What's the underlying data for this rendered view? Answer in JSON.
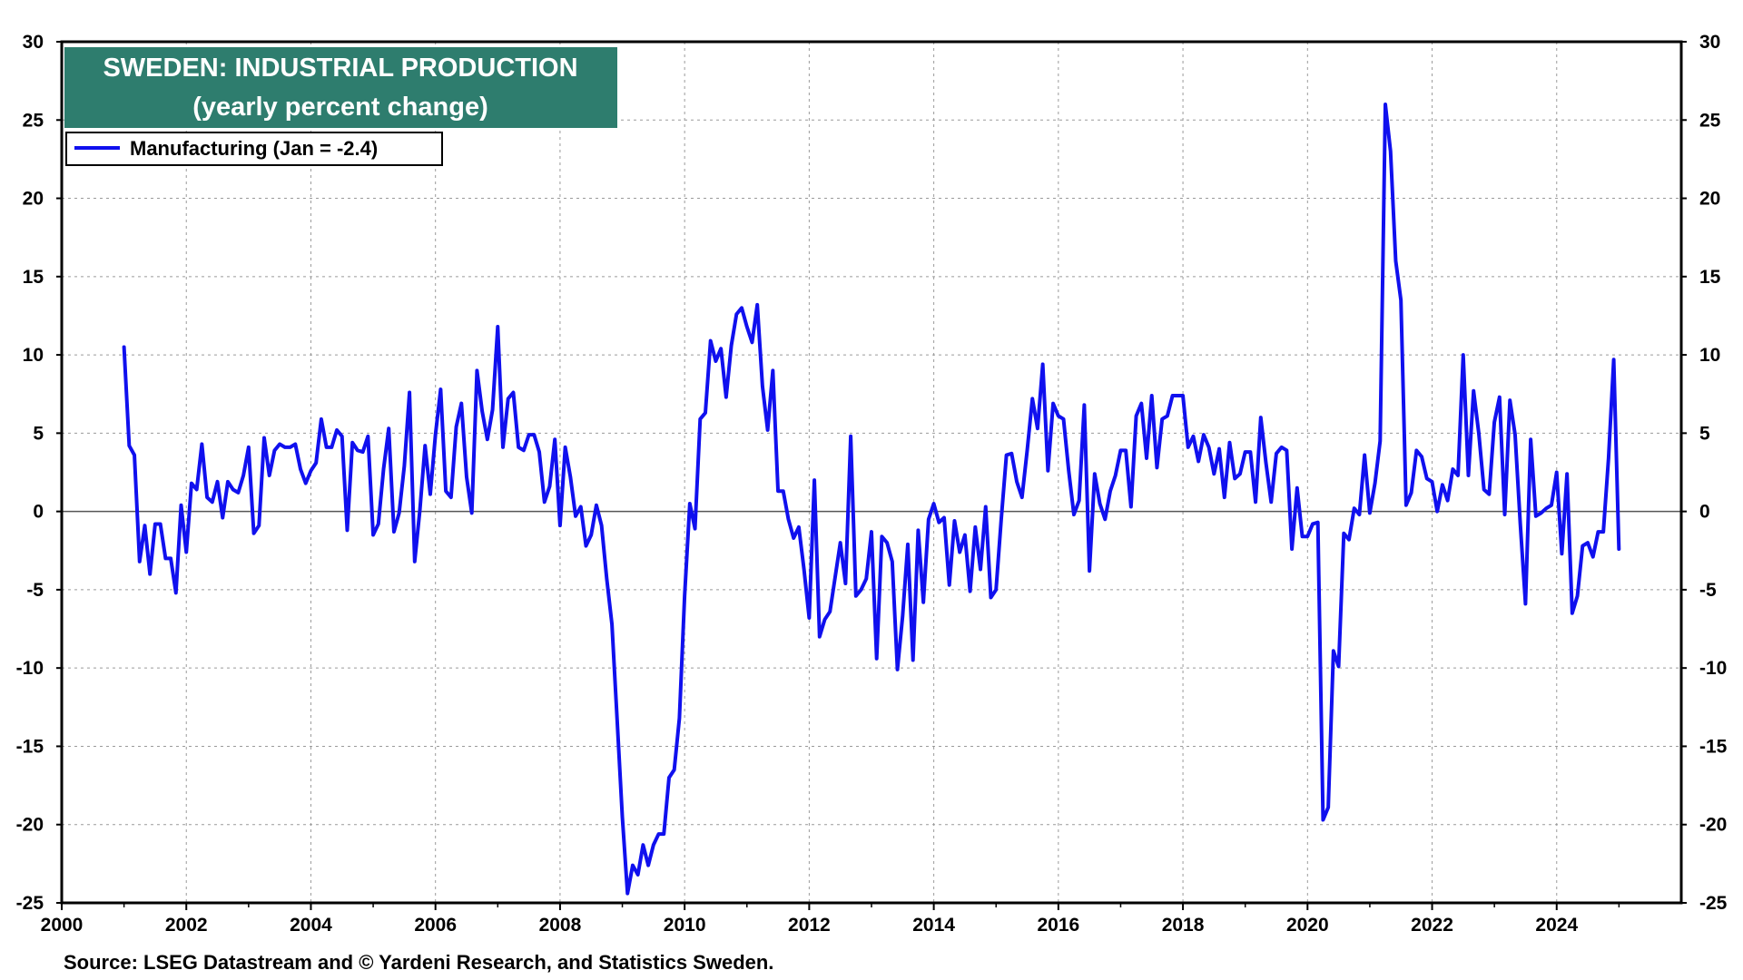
{
  "chart_data": {
    "type": "line",
    "title": "SWEDEN: INDUSTRIAL PRODUCTION",
    "subtitle": "(yearly percent change)",
    "xlabel": "",
    "ylabel": "",
    "xlim": [
      2000,
      2026
    ],
    "ylim": [
      -25,
      30
    ],
    "grid": true,
    "legend_position": "top-left",
    "x_ticks": [
      "2000",
      "2002",
      "2004",
      "2006",
      "2008",
      "2010",
      "2012",
      "2014",
      "2016",
      "2018",
      "2020",
      "2022",
      "2024"
    ],
    "y_ticks": [
      "30",
      "25",
      "20",
      "15",
      "10",
      "5",
      "0",
      "-5",
      "-10",
      "-15",
      "-20",
      "-25"
    ],
    "source": "Source: LSEG Datastream and © Yardeni Research, and Statistics Sweden.",
    "colors": {
      "series": "#1010ee",
      "title_bg": "#2e7d6e",
      "grid": "#9a9a9a",
      "zero_line": "#555555"
    },
    "series": [
      {
        "name": "Manufacturing (Jan = -2.4)",
        "x_start": 2001.0,
        "x_step": 0.08333,
        "values": [
          10.5,
          4.2,
          3.6,
          -3.2,
          -0.9,
          -4.0,
          -0.8,
          -0.8,
          -3.0,
          -3.0,
          -5.2,
          0.4,
          -2.6,
          1.8,
          1.4,
          4.3,
          0.9,
          0.6,
          1.9,
          -0.4,
          1.9,
          1.4,
          1.2,
          2.3,
          4.1,
          -1.4,
          -0.9,
          4.7,
          2.3,
          3.9,
          4.3,
          4.1,
          4.1,
          4.3,
          2.7,
          1.8,
          2.6,
          3.1,
          5.9,
          4.1,
          4.1,
          5.2,
          4.8,
          -1.2,
          4.4,
          3.9,
          3.8,
          4.8,
          -1.5,
          -0.8,
          2.7,
          5.3,
          -1.3,
          -0.1,
          2.9,
          7.6,
          -3.2,
          0.1,
          4.2,
          1.1,
          4.9,
          7.8,
          1.3,
          0.9,
          5.4,
          6.9,
          2.2,
          -0.1,
          9.0,
          6.4,
          4.6,
          6.5,
          11.8,
          4.1,
          7.2,
          7.6,
          4.1,
          3.9,
          4.9,
          4.9,
          3.8,
          0.6,
          1.6,
          4.6,
          -0.9,
          4.1,
          2.2,
          -0.3,
          0.3,
          -2.2,
          -1.5,
          0.4,
          -0.9,
          -4.3,
          -7.2,
          -13.3,
          -19.5,
          -24.4,
          -22.6,
          -23.2,
          -21.3,
          -22.6,
          -21.3,
          -20.6,
          -20.6,
          -17.0,
          -16.5,
          -13.2,
          -5.4,
          0.5,
          -1.1,
          5.9,
          6.3,
          10.9,
          9.6,
          10.4,
          7.3,
          10.6,
          12.6,
          13.0,
          11.8,
          10.8,
          13.2,
          8.0,
          5.2,
          9.0,
          1.3,
          1.3,
          -0.5,
          -1.7,
          -1.0,
          -3.7,
          -6.8,
          2.0,
          -8.0,
          -6.9,
          -6.4,
          -4.2,
          -2.0,
          -4.6,
          4.8,
          -5.4,
          -5.0,
          -4.3,
          -1.3,
          -9.4,
          -1.6,
          -2.0,
          -3.2,
          -10.1,
          -6.7,
          -2.1,
          -9.5,
          -1.2,
          -5.8,
          -0.5,
          0.5,
          -0.7,
          -0.4,
          -4.7,
          -0.6,
          -2.6,
          -1.5,
          -5.1,
          -1.0,
          -3.7,
          0.3,
          -5.5,
          -5.0,
          -0.5,
          3.6,
          3.7,
          1.9,
          0.9,
          3.9,
          7.2,
          5.3,
          9.4,
          2.6,
          6.9,
          6.1,
          5.9,
          2.6,
          -0.2,
          0.7,
          6.8,
          -3.8,
          2.4,
          0.5,
          -0.5,
          1.3,
          2.3,
          3.9,
          3.9,
          0.3,
          6.1,
          6.9,
          3.4,
          7.4,
          2.8,
          5.9,
          6.1,
          7.4,
          7.4,
          7.4,
          4.1,
          4.8,
          3.2,
          4.9,
          4.1,
          2.4,
          4.0,
          0.9,
          4.4,
          2.1,
          2.4,
          3.8,
          3.8,
          0.6,
          6.0,
          3.1,
          0.6,
          3.7,
          4.1,
          3.9,
          -2.4,
          1.5,
          -1.6,
          -1.6,
          -0.8,
          -0.7,
          -19.7,
          -18.9,
          -8.9,
          -9.9,
          -1.4,
          -1.8,
          0.2,
          -0.2,
          3.6,
          -0.1,
          1.8,
          4.5,
          26.0,
          23.0,
          16.0,
          13.5,
          0.4,
          1.2,
          3.9,
          3.5,
          2.1,
          1.9,
          -0.0,
          1.7,
          0.7,
          2.7,
          2.3,
          10.0,
          2.3,
          7.7,
          5.0,
          1.4,
          1.1,
          5.7,
          7.3,
          -0.2,
          7.1,
          4.9,
          -0.8,
          -5.9,
          4.6,
          -0.3,
          -0.1,
          0.2,
          0.4,
          2.5,
          -2.7,
          2.4,
          -6.5,
          -5.4,
          -2.2,
          -2.0,
          -2.9,
          -1.3,
          -1.3,
          3.4,
          9.7,
          -2.4
        ]
      }
    ]
  }
}
